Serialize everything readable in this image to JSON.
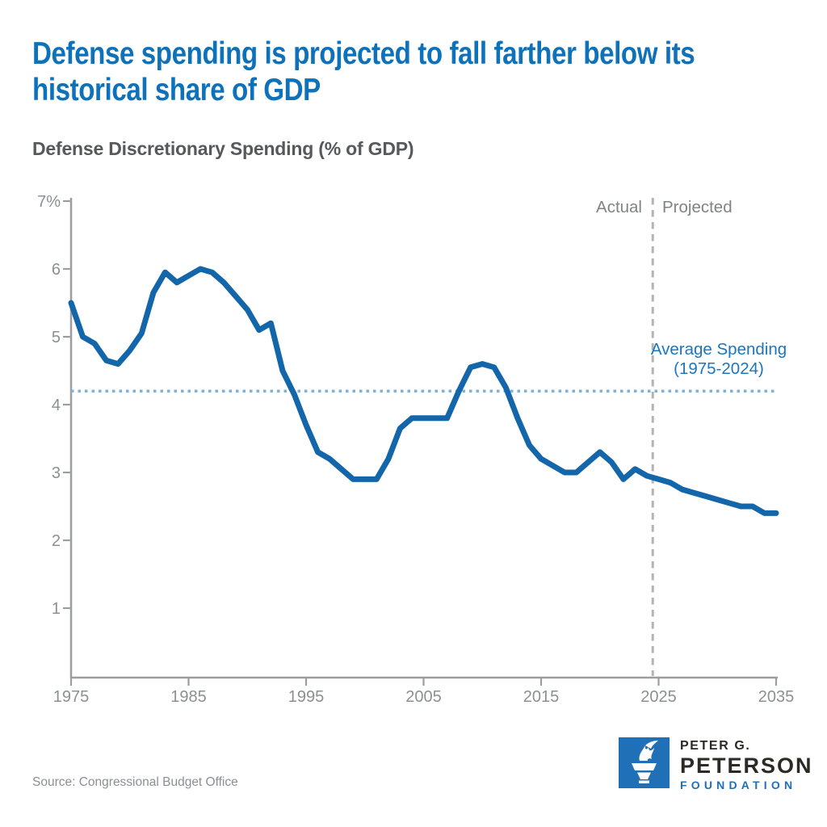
{
  "title": {
    "line1": "Defense spending is projected to fall farther below its",
    "line2": "historical share of GDP"
  },
  "subtitle": "Defense Discretionary Spending (% of GDP)",
  "source": "Source: Congressional Budget Office",
  "logo": {
    "line1": "PETER G.",
    "line2": "PETERSON",
    "line3": "FOUNDATION",
    "icon": "torch-icon"
  },
  "colors": {
    "title_blue": "#0d72b9",
    "subtitle_gray": "#57585a",
    "line_blue": "#1366a9",
    "average_line_blue": "#7fb1d9",
    "average_label_blue": "#1b76bd",
    "divider_gray": "#b2b4b6",
    "axis_gray": "#9b9da0",
    "tick_label_gray": "#8d8f92",
    "annotation_gray": "#808285",
    "logo_blue": "#2070b7",
    "logo_dark": "#2d2a25"
  },
  "chart_data": {
    "type": "line",
    "title": "Defense Discretionary Spending (% of GDP)",
    "series_name": "Defense discretionary spending, % of GDP",
    "xlim": [
      1975,
      2035
    ],
    "ylim": [
      0,
      7
    ],
    "grid": false,
    "xticks": [
      1975,
      1985,
      1995,
      2005,
      2015,
      2025,
      2035
    ],
    "yticks": [
      1,
      2,
      3,
      4,
      5,
      6,
      7
    ],
    "ytick_labels": [
      "1",
      "2",
      "3",
      "4",
      "5",
      "6",
      "7%"
    ],
    "average_value": 4.2,
    "divider_year": 2024.5,
    "actual_through": 2024,
    "annotations": {
      "actual": "Actual",
      "projected": "Projected",
      "average_line1": "Average Spending",
      "average_line2": "(1975-2024)"
    },
    "x": [
      1975,
      1976,
      1977,
      1978,
      1979,
      1980,
      1981,
      1982,
      1983,
      1984,
      1985,
      1986,
      1987,
      1988,
      1989,
      1990,
      1991,
      1992,
      1993,
      1994,
      1995,
      1996,
      1997,
      1998,
      1999,
      2000,
      2001,
      2002,
      2003,
      2004,
      2005,
      2006,
      2007,
      2008,
      2009,
      2010,
      2011,
      2012,
      2013,
      2014,
      2015,
      2016,
      2017,
      2018,
      2019,
      2020,
      2021,
      2022,
      2023,
      2024,
      2025,
      2026,
      2027,
      2028,
      2029,
      2030,
      2031,
      2032,
      2033,
      2034,
      2035
    ],
    "values": [
      5.5,
      5.0,
      4.9,
      4.65,
      4.6,
      4.8,
      5.05,
      5.65,
      5.95,
      5.8,
      5.9,
      6.0,
      5.95,
      5.8,
      5.6,
      5.4,
      5.1,
      5.2,
      4.5,
      4.15,
      3.7,
      3.3,
      3.2,
      3.05,
      2.9,
      2.9,
      2.9,
      3.2,
      3.65,
      3.8,
      3.8,
      3.8,
      3.8,
      4.2,
      4.55,
      4.6,
      4.55,
      4.25,
      3.8,
      3.4,
      3.2,
      3.1,
      3.0,
      3.0,
      3.15,
      3.3,
      3.15,
      2.9,
      3.05,
      2.95,
      2.9,
      2.85,
      2.75,
      2.7,
      2.65,
      2.6,
      2.55,
      2.5,
      2.5,
      2.4,
      2.4
    ]
  }
}
